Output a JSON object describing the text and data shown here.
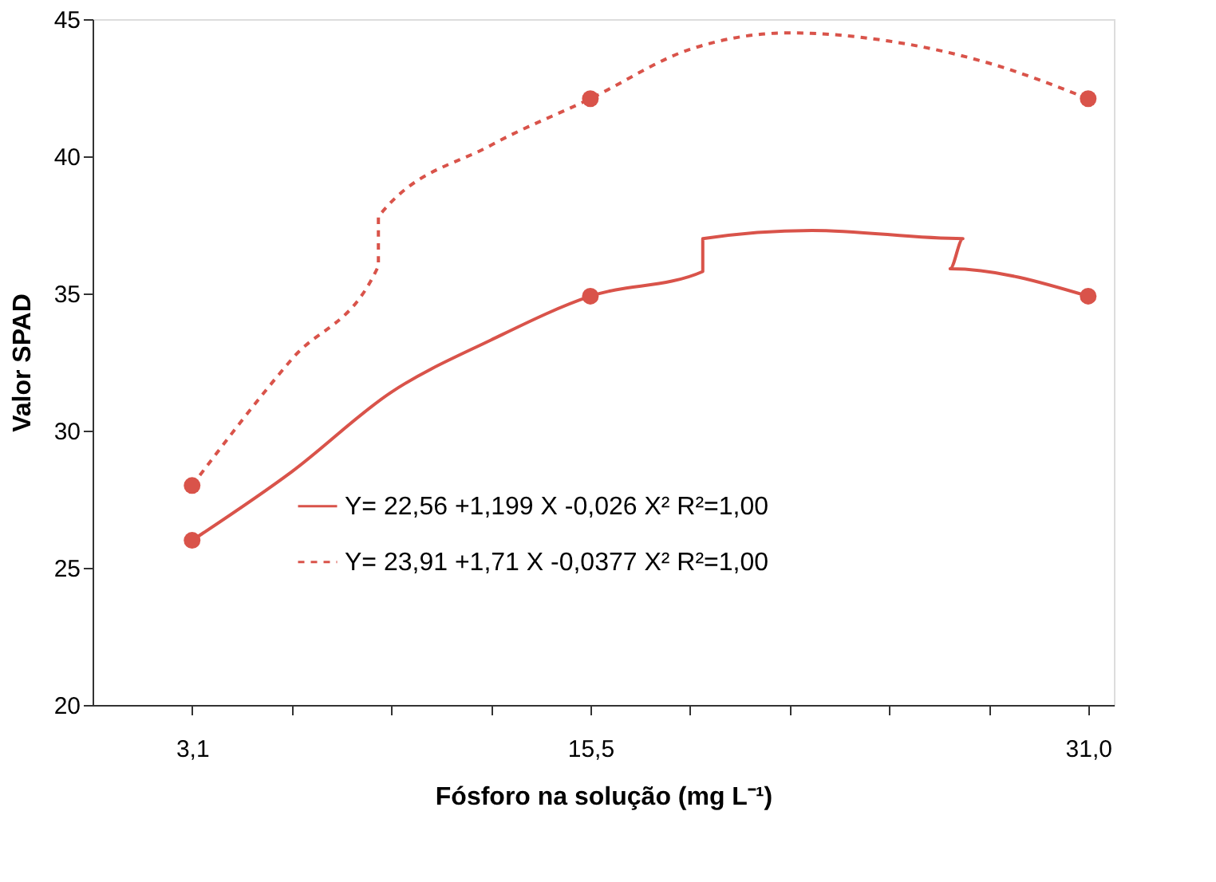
{
  "chart_data": {
    "type": "line",
    "xlabel": "Fósforo na solução (mg L⁻¹)",
    "ylabel": "Valor SPAD",
    "xlim": [
      0,
      31.8
    ],
    "ylim": [
      20,
      45
    ],
    "xticks": [
      {
        "value": 3.1,
        "label": "3,1"
      },
      {
        "value": 6.2,
        "label": null
      },
      {
        "value": 9.3,
        "label": null
      },
      {
        "value": 12.4,
        "label": null
      },
      {
        "value": 15.5,
        "label": "15,5"
      },
      {
        "value": 18.6,
        "label": null
      },
      {
        "value": 21.7,
        "label": null
      },
      {
        "value": 24.8,
        "label": null
      },
      {
        "value": 27.9,
        "label": null
      },
      {
        "value": 31.0,
        "label": "31,0"
      }
    ],
    "yticks": [
      20,
      25,
      30,
      35,
      40,
      45
    ],
    "grid": false,
    "legend": "bottom",
    "series": [
      {
        "name": "Y= 22,56 +1,199 X -0,026 X²    R²=1,00",
        "line_style": "solid",
        "color": "#d9534a",
        "x": [
          3.1,
          6.2,
          9.3,
          12.4,
          15.5,
          19.0,
          19.0,
          22.4,
          27.1,
          26.7,
          31.0
        ],
        "values": [
          26.0,
          28.5,
          31.4,
          33.3,
          34.9,
          35.8,
          37.0,
          37.3,
          37.0,
          35.9,
          34.9
        ]
      },
      {
        "name": "Y= 23,91 +1,71 X -0,0377 X²    R²=1,00",
        "line_style": "dashed",
        "color": "#d9534a",
        "x": [
          3.1,
          6.2,
          8.9,
          8.9,
          12.4,
          15.5,
          18.6,
          21.7,
          24.8,
          27.9,
          31.0
        ],
        "values": [
          28.0,
          32.6,
          36.0,
          37.8,
          40.4,
          42.1,
          43.9,
          44.5,
          44.2,
          43.4,
          42.1
        ]
      },
      {
        "type": "scatter",
        "marker": "circle",
        "color": "#d9534a",
        "x": [
          3.1,
          15.5,
          31.0
        ],
        "values": [
          26.0,
          34.9,
          34.9
        ]
      },
      {
        "type": "scatter",
        "marker": "circle",
        "color": "#d9534a",
        "x": [
          3.1,
          15.5,
          31.0
        ],
        "values": [
          28.0,
          42.1,
          42.1
        ]
      }
    ]
  }
}
